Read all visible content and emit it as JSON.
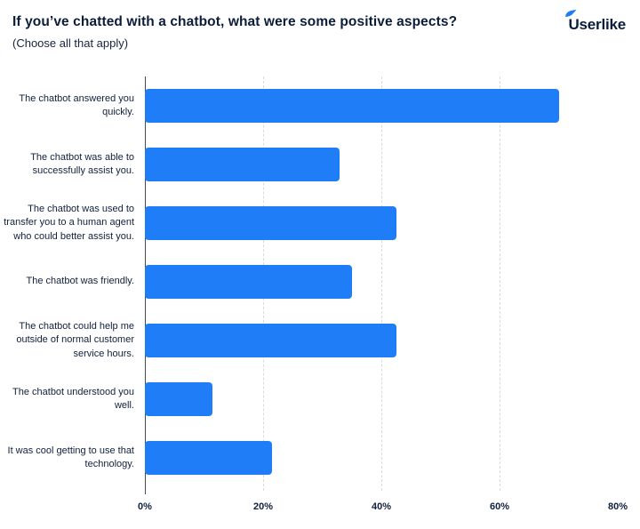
{
  "header": {
    "title": "If you’ve chatted with a chatbot, what were some positive aspects?",
    "subtitle": "(Choose all that apply)",
    "logo_text": "Userlike"
  },
  "colors": {
    "bar": "#1E7DF7",
    "text": "#0B1D3A",
    "gridline": "#D7DAE1",
    "axis_line": "#444B59",
    "logo_mark": "#1E7DF7"
  },
  "chart_data": {
    "type": "bar",
    "orientation": "horizontal",
    "title": "If you’ve chatted with a chatbot, what were some positive aspects?",
    "subtitle": "(Choose all that apply)",
    "categories": [
      "The chatbot answered you quickly.",
      "The chatbot was able to successfully assist you.",
      "The chatbot was used to transfer you to a human agent who could better assist you.",
      "The chatbot was friendly.",
      "The chatbot could help me outside of normal customer service hours.",
      "The chatbot understood you well.",
      "It was cool getting to use that technology."
    ],
    "values": [
      70,
      33,
      42.5,
      35,
      42.5,
      11.5,
      21.5
    ],
    "value_unit": "%",
    "xlabel": "",
    "ylabel": "",
    "xlim": [
      0,
      80
    ],
    "x_tick_values": [
      0,
      20,
      40,
      60,
      80
    ],
    "x_tick_labels": [
      "0%",
      "20%",
      "40%",
      "60%",
      "80%"
    ],
    "grid_positions": [
      20,
      40,
      60
    ],
    "grid_style": "dashed-vertical",
    "legend": "none"
  }
}
